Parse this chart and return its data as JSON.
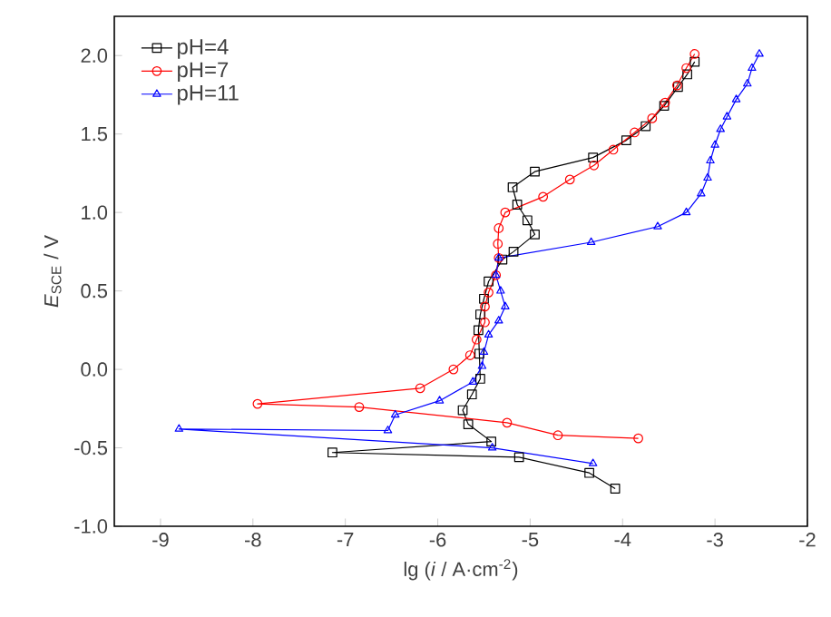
{
  "chart_data": {
    "type": "line",
    "xlabel": "lg (*i* / A·cm$^{-2}$)",
    "ylabel": "*E*$_{SCE}$ / V",
    "xlim": [
      -9.5,
      -2
    ],
    "ylim": [
      -1.0,
      2.25
    ],
    "xticks": [
      -9,
      -8,
      -7,
      -6,
      -5,
      -4,
      -3,
      -2
    ],
    "yticks": [
      {
        "value": -1.0,
        "label": "-1.0"
      },
      {
        "value": -0.5,
        "label": "-0.5"
      },
      {
        "value": 0,
        "label": "0.0"
      },
      {
        "value": 0.5,
        "label": "0.5"
      },
      {
        "value": 1.0,
        "label": "1.0"
      },
      {
        "value": 1.5,
        "label": "1.5"
      },
      {
        "value": 2.0,
        "label": "2.0"
      }
    ],
    "legend": "top left",
    "grid": false,
    "series": [
      {
        "name": "pH=4",
        "color": "#000000",
        "marker": "square",
        "x": [
          -4.08,
          -4.36,
          -5.12,
          -7.14,
          -5.42,
          -5.67,
          -5.73,
          -5.63,
          -5.54,
          -5.55,
          -5.56,
          -5.54,
          -5.5,
          -5.45,
          -5.3,
          -5.18,
          -4.95,
          -5.03,
          -5.14,
          -5.19,
          -4.95,
          -4.32,
          -3.96,
          -3.75,
          -3.55,
          -3.4,
          -3.3,
          -3.22
        ],
        "values": [
          -0.76,
          -0.66,
          -0.56,
          -0.53,
          -0.46,
          -0.35,
          -0.26,
          -0.16,
          -0.06,
          0.1,
          0.25,
          0.35,
          0.45,
          0.56,
          0.7,
          0.75,
          0.86,
          0.95,
          1.05,
          1.16,
          1.26,
          1.35,
          1.46,
          1.55,
          1.68,
          1.8,
          1.88,
          1.96
        ]
      },
      {
        "name": "pH=7",
        "color": "#ff0000",
        "marker": "circle",
        "x": [
          -3.83,
          -4.7,
          -5.25,
          -6.85,
          -7.95,
          -6.19,
          -5.83,
          -5.65,
          -5.58,
          -5.49,
          -5.49,
          -5.45,
          -5.37,
          -5.34,
          -5.35,
          -5.34,
          -5.27,
          -4.86,
          -4.57,
          -4.31,
          -4.1,
          -3.87,
          -3.68,
          -3.54,
          -3.41,
          -3.31,
          -3.22
        ],
        "values": [
          -0.44,
          -0.42,
          -0.34,
          -0.24,
          -0.22,
          -0.12,
          0.0,
          0.09,
          0.19,
          0.3,
          0.4,
          0.49,
          0.6,
          0.71,
          0.8,
          0.9,
          1.0,
          1.1,
          1.21,
          1.3,
          1.4,
          1.51,
          1.6,
          1.7,
          1.81,
          1.92,
          2.01
        ]
      },
      {
        "name": "pH=11",
        "color": "#0000ff",
        "marker": "triangle",
        "x": [
          -4.32,
          -5.41,
          -8.8,
          -6.54,
          -6.46,
          -5.98,
          -5.62,
          -5.52,
          -5.5,
          -5.45,
          -5.34,
          -5.27,
          -5.32,
          -5.37,
          -5.34,
          -4.34,
          -3.62,
          -3.31,
          -3.15,
          -3.08,
          -3.05,
          -3.0,
          -2.94,
          -2.87,
          -2.77,
          -2.65,
          -2.6,
          -2.52
        ],
        "values": [
          -0.6,
          -0.5,
          -0.38,
          -0.39,
          -0.29,
          -0.2,
          -0.08,
          0.02,
          0.11,
          0.22,
          0.31,
          0.4,
          0.5,
          0.6,
          0.71,
          0.81,
          0.91,
          1.0,
          1.12,
          1.22,
          1.33,
          1.43,
          1.53,
          1.61,
          1.72,
          1.82,
          1.92,
          2.01
        ]
      }
    ]
  }
}
